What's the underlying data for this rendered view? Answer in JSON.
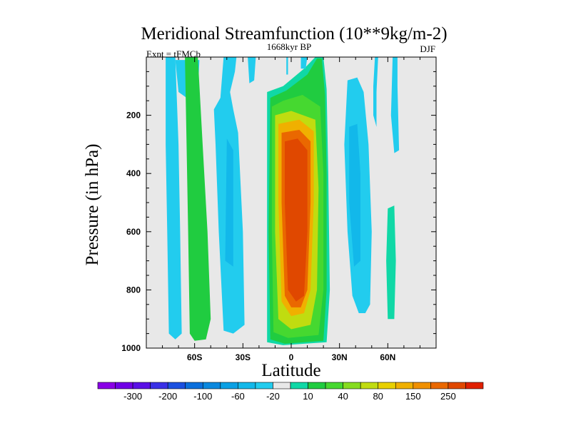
{
  "chart_data": {
    "type": "heatmap",
    "subtype": "filled-contour",
    "title": "Meridional Streamfunction (10**9kg/m-2)",
    "left_label": "Expt = tFMCb",
    "center_label": "1668kyr BP",
    "right_label": "DJF",
    "xlabel": "Latitude",
    "ylabel": "Pressure (in hPa)",
    "xlim": [
      -90,
      90
    ],
    "ylim": [
      0,
      1000
    ],
    "y_inverted": true,
    "x_ticks": [
      {
        "value": -60,
        "label": "60S"
      },
      {
        "value": -30,
        "label": "30S"
      },
      {
        "value": 0,
        "label": "0"
      },
      {
        "value": 30,
        "label": "30N"
      },
      {
        "value": 60,
        "label": "60N"
      }
    ],
    "y_ticks": [
      {
        "value": 200,
        "label": "200"
      },
      {
        "value": 400,
        "label": "400"
      },
      {
        "value": 600,
        "label": "600"
      },
      {
        "value": 800,
        "label": "800"
      },
      {
        "value": 1000,
        "label": "1000"
      }
    ],
    "colorbar": {
      "colors": [
        "#8a00e6",
        "#7000e6",
        "#5a10e6",
        "#3a30e6",
        "#1b50e0",
        "#0b6fdc",
        "#0a88de",
        "#0aa0e4",
        "#12b8ea",
        "#22ccee",
        "#e8e8e8",
        "#10d8a6",
        "#20cc40",
        "#46d830",
        "#86dc20",
        "#c0dc10",
        "#e8d000",
        "#f0b000",
        "#f09000",
        "#ea6800",
        "#e04800",
        "#e02000"
      ],
      "labels": [
        "-300",
        "-200",
        "-100",
        "-60",
        "-20",
        "10",
        "40",
        "80",
        "150",
        "250"
      ],
      "label_after_index": [
        1,
        3,
        5,
        7,
        9,
        11,
        13,
        15,
        17,
        19
      ]
    },
    "regions": [
      {
        "name": "south-polar-negative-cell",
        "level": 9,
        "outline": [
          [
            -78,
            0
          ],
          [
            -72,
            0
          ],
          [
            -70,
            300
          ],
          [
            -69,
            600
          ],
          [
            -68,
            950
          ],
          [
            -72,
            970
          ],
          [
            -76,
            950
          ],
          [
            -77,
            600
          ],
          [
            -78,
            300
          ]
        ]
      },
      {
        "name": "south-polar-aloft-negative",
        "level": 9,
        "outline": [
          [
            -72,
            10
          ],
          [
            -57,
            10
          ],
          [
            -58,
            120
          ],
          [
            -65,
            140
          ],
          [
            -70,
            120
          ]
        ]
      },
      {
        "name": "south-subpolar-positive-cell",
        "level": 12,
        "outline": [
          [
            -66,
            0
          ],
          [
            -58,
            0
          ],
          [
            -55,
            300
          ],
          [
            -52,
            600
          ],
          [
            -50,
            900
          ],
          [
            -53,
            970
          ],
          [
            -60,
            975
          ],
          [
            -63,
            950
          ],
          [
            -64,
            600
          ],
          [
            -65,
            300
          ]
        ]
      },
      {
        "name": "southern-ferrel-negative-cell",
        "level": 9,
        "outline": [
          [
            -42,
            0
          ],
          [
            -34,
            0
          ],
          [
            -35,
            50
          ],
          [
            -38,
            120
          ],
          [
            -36,
            180
          ],
          [
            -33,
            260
          ],
          [
            -30,
            600
          ],
          [
            -29,
            920
          ],
          [
            -36,
            950
          ],
          [
            -42,
            940
          ],
          [
            -45,
            600
          ],
          [
            -47,
            300
          ],
          [
            -48,
            180
          ],
          [
            -44,
            140
          ]
        ]
      },
      {
        "name": "southern-ferrel-core",
        "level": 8,
        "outline": [
          [
            -40,
            280
          ],
          [
            -36,
            320
          ],
          [
            -36,
            720
          ],
          [
            -41,
            700
          ]
        ]
      },
      {
        "name": "south-subtropical-negative-strip",
        "level": 9,
        "outline": [
          [
            -27,
            0
          ],
          [
            -22,
            0
          ],
          [
            -23,
            80
          ],
          [
            -26,
            90
          ]
        ]
      },
      {
        "name": "hadley-cell-outer",
        "level": 11,
        "outline": [
          [
            -15,
            120
          ],
          [
            -5,
            100
          ],
          [
            8,
            40
          ],
          [
            15,
            0
          ],
          [
            20,
            0
          ],
          [
            22,
            110
          ],
          [
            23,
            400
          ],
          [
            24,
            800
          ],
          [
            22,
            980
          ],
          [
            -5,
            990
          ],
          [
            -15,
            980
          ],
          [
            -15,
            600
          ]
        ]
      },
      {
        "name": "hadley-cell-green",
        "level": 12,
        "outline": [
          [
            -13,
            140
          ],
          [
            -3,
            115
          ],
          [
            10,
            60
          ],
          [
            16,
            5
          ],
          [
            19,
            5
          ],
          [
            21,
            130
          ],
          [
            22,
            400
          ],
          [
            22,
            800
          ],
          [
            20,
            975
          ],
          [
            -4,
            985
          ],
          [
            -13,
            970
          ],
          [
            -14,
            600
          ]
        ]
      },
      {
        "name": "hadley-cell-green-2",
        "level": 13,
        "outline": [
          [
            -12,
            170
          ],
          [
            -5,
            150
          ],
          [
            7,
            130
          ],
          [
            18,
            170
          ],
          [
            20,
            400
          ],
          [
            20,
            800
          ],
          [
            17,
            955
          ],
          [
            -2,
            965
          ],
          [
            -11,
            945
          ],
          [
            -12,
            600
          ]
        ]
      },
      {
        "name": "hadley-cell-yellow",
        "level": 15,
        "outline": [
          [
            -10,
            200
          ],
          [
            0,
            185
          ],
          [
            15,
            215
          ],
          [
            17,
            450
          ],
          [
            16,
            800
          ],
          [
            12,
            920
          ],
          [
            0,
            935
          ],
          [
            -8,
            900
          ],
          [
            -10,
            600
          ]
        ]
      },
      {
        "name": "hadley-cell-orange",
        "level": 17,
        "outline": [
          [
            -8,
            230
          ],
          [
            5,
            215
          ],
          [
            14,
            255
          ],
          [
            14,
            500
          ],
          [
            12,
            800
          ],
          [
            8,
            880
          ],
          [
            0,
            890
          ],
          [
            -6,
            840
          ],
          [
            -8,
            500
          ]
        ]
      },
      {
        "name": "hadley-cell-deep-orange",
        "level": 19,
        "outline": [
          [
            -6,
            260
          ],
          [
            5,
            250
          ],
          [
            12,
            290
          ],
          [
            12,
            500
          ],
          [
            10,
            800
          ],
          [
            6,
            860
          ],
          [
            0,
            860
          ],
          [
            -4,
            820
          ],
          [
            -6,
            500
          ]
        ]
      },
      {
        "name": "hadley-cell-core",
        "level": 20,
        "outline": [
          [
            -4,
            290
          ],
          [
            4,
            280
          ],
          [
            10,
            320
          ],
          [
            10,
            600
          ],
          [
            8,
            820
          ],
          [
            3,
            840
          ],
          [
            -2,
            800
          ],
          [
            -4,
            500
          ]
        ]
      },
      {
        "name": "north-subtropical-negative-cell",
        "level": 9,
        "outline": [
          [
            35,
            80
          ],
          [
            41,
            70
          ],
          [
            45,
            120
          ],
          [
            48,
            300
          ],
          [
            50,
            600
          ],
          [
            49,
            850
          ],
          [
            46,
            880
          ],
          [
            42,
            880
          ],
          [
            38,
            820
          ],
          [
            35,
            600
          ],
          [
            33,
            300
          ]
        ]
      },
      {
        "name": "north-subtropical-negative-core",
        "level": 8,
        "outline": [
          [
            36,
            240
          ],
          [
            41,
            230
          ],
          [
            43,
            400
          ],
          [
            43,
            700
          ],
          [
            39,
            720
          ],
          [
            36,
            500
          ]
        ]
      },
      {
        "name": "north-midlatitude-negative-cell",
        "level": 9,
        "outline": [
          [
            52,
            0
          ],
          [
            54,
            0
          ],
          [
            53,
            120
          ],
          [
            53,
            240
          ],
          [
            51,
            200
          ],
          [
            51,
            100
          ]
        ]
      },
      {
        "name": "north-polar-negative-cell",
        "level": 9,
        "outline": [
          [
            63,
            0
          ],
          [
            66,
            0
          ],
          [
            66,
            100
          ],
          [
            67,
            320
          ],
          [
            64,
            330
          ],
          [
            62,
            200
          ]
        ]
      },
      {
        "name": "north-polar-positive-cell",
        "level": 11,
        "outline": [
          [
            60,
            520
          ],
          [
            64,
            510
          ],
          [
            65,
            700
          ],
          [
            64,
            900
          ],
          [
            60,
            900
          ],
          [
            59,
            700
          ]
        ]
      },
      {
        "name": "equatorial-aloft-negative-a",
        "level": 9,
        "outline": [
          [
            -3,
            0
          ],
          [
            -2,
            0
          ],
          [
            -2,
            60
          ],
          [
            -3,
            60
          ]
        ]
      },
      {
        "name": "equatorial-aloft-negative-b",
        "level": 9,
        "outline": [
          [
            6,
            0
          ],
          [
            10,
            0
          ],
          [
            9,
            40
          ],
          [
            6,
            40
          ]
        ]
      }
    ]
  }
}
